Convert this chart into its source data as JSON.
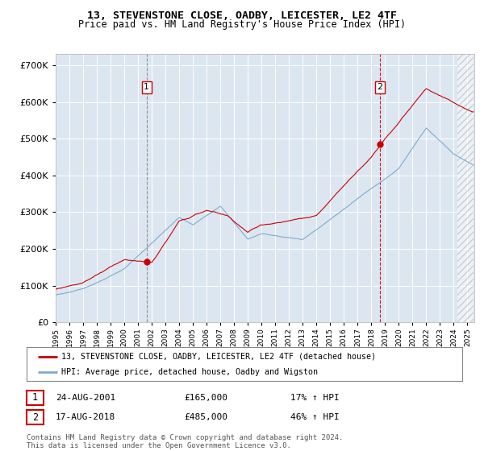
{
  "title1": "13, STEVENSTONE CLOSE, OADBY, LEICESTER, LE2 4TF",
  "title2": "Price paid vs. HM Land Registry's House Price Index (HPI)",
  "ylim": [
    0,
    730000
  ],
  "yticks": [
    0,
    100000,
    200000,
    300000,
    400000,
    500000,
    600000,
    700000
  ],
  "plot_bg": "#dce6f1",
  "line_color_hpi": "#7faacc",
  "line_color_price": "#cc0000",
  "marker1_x": 2001.63,
  "marker1_y": 165000,
  "marker2_x": 2018.63,
  "marker2_y": 485000,
  "vline1_style": "dashed_grey",
  "vline2_style": "dashed_red",
  "legend_label1": "13, STEVENSTONE CLOSE, OADBY, LEICESTER, LE2 4TF (detached house)",
  "legend_label2": "HPI: Average price, detached house, Oadby and Wigston",
  "note1_date": "24-AUG-2001",
  "note1_price": "£165,000",
  "note1_hpi": "17% ↑ HPI",
  "note2_date": "17-AUG-2018",
  "note2_price": "£485,000",
  "note2_hpi": "46% ↑ HPI",
  "footer": "Contains HM Land Registry data © Crown copyright and database right 2024.\nThis data is licensed under the Open Government Licence v3.0.",
  "xlim_start": 1995.0,
  "xlim_end": 2025.5
}
